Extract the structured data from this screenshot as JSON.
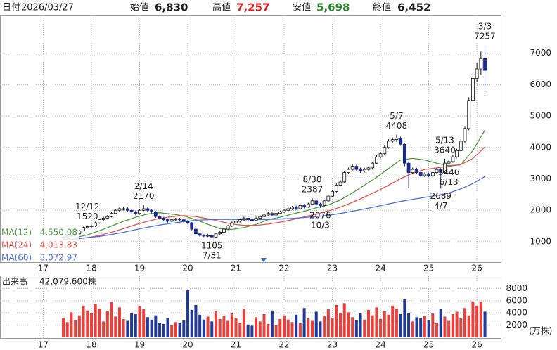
{
  "header": {
    "date_label": "日付",
    "date": "2026/03/27",
    "open_label": "始値",
    "open": "6,830",
    "high_label": "高値",
    "high": "7,257",
    "low_label": "安値",
    "low": "5,698",
    "close_label": "終値",
    "close": "6,452"
  },
  "chart_data": {
    "type": "candlestick",
    "ylim": [
      350,
      8200
    ],
    "yticks": [
      1000,
      2000,
      3000,
      4000,
      5000,
      6000,
      7000
    ],
    "grid": true,
    "xticks": [
      {
        "value": -5,
        "label": "17"
      },
      {
        "value": 7,
        "label": "18"
      },
      {
        "value": 19,
        "label": "19"
      },
      {
        "value": 31,
        "label": "20"
      },
      {
        "value": 43,
        "label": "21"
      },
      {
        "value": 55,
        "label": "22"
      },
      {
        "value": 67,
        "label": "23"
      },
      {
        "value": 79,
        "label": "24"
      },
      {
        "value": 91,
        "label": "25"
      },
      {
        "value": 103,
        "label": "26"
      }
    ],
    "up_color": "#ffffff",
    "down_color": "#1a2a8a",
    "open": [
      1120,
      1150,
      1180,
      1200,
      1250,
      1350,
      1450,
      1480,
      1500,
      1600,
      1700,
      1750,
      1800,
      1900,
      2000,
      2050,
      2050,
      2000,
      1950,
      1900,
      2000,
      2050,
      2000,
      1950,
      1800,
      1750,
      1700,
      1650,
      1700,
      1720,
      1700,
      1650,
      1600,
      1400,
      1250,
      1200,
      1180,
      1200,
      1150,
      1250,
      1300,
      1400,
      1500,
      1600,
      1650,
      1700,
      1750,
      1700,
      1680,
      1750,
      1800,
      1850,
      1900,
      1850,
      1900,
      1950,
      2000,
      2050,
      2100,
      2050,
      2150,
      2100,
      2200,
      2300,
      2200,
      2150,
      2300,
      2450,
      2600,
      2800,
      2900,
      3200,
      3300,
      3400,
      3300,
      3250,
      3300,
      3350,
      3500,
      3700,
      3800,
      4000,
      4200,
      4250,
      4300,
      4100,
      3500,
      3200,
      3300,
      3200,
      3100,
      3150,
      3100,
      3200,
      3300,
      3200,
      3500,
      3550,
      3700,
      3900,
      4200,
      4600,
      5500,
      6200,
      6500,
      6830
    ],
    "high": [
      1180,
      1210,
      1230,
      1280,
      1380,
      1480,
      1520,
      1540,
      1640,
      1740,
      1800,
      1850,
      1940,
      2050,
      2100,
      2110,
      2090,
      2040,
      1990,
      2040,
      2170,
      2100,
      2050,
      1980,
      1840,
      1790,
      1740,
      1740,
      1760,
      1760,
      1740,
      1690,
      1620,
      1430,
      1290,
      1240,
      1250,
      1230,
      1280,
      1340,
      1430,
      1540,
      1640,
      1690,
      1740,
      1790,
      1780,
      1740,
      1790,
      1840,
      1890,
      1940,
      1950,
      1940,
      1990,
      2040,
      2090,
      2140,
      2150,
      2190,
      2200,
      2240,
      2387,
      2330,
      2240,
      2340,
      2490,
      2640,
      2850,
      2960,
      3250,
      3360,
      3460,
      3450,
      3360,
      3350,
      3400,
      3550,
      3750,
      3860,
      4060,
      4260,
      4320,
      4408,
      4340,
      4150,
      3560,
      3360,
      3350,
      3260,
      3200,
      3200,
      3250,
      3350,
      3340,
      3640,
      3600,
      3750,
      3960,
      4260,
      4680,
      5600,
      6300,
      6700,
      7050,
      7257
    ],
    "low": [
      1100,
      1130,
      1160,
      1180,
      1230,
      1330,
      1420,
      1440,
      1470,
      1570,
      1660,
      1710,
      1770,
      1870,
      1960,
      1990,
      1950,
      1900,
      1840,
      1860,
      1970,
      1960,
      1900,
      1760,
      1700,
      1660,
      1610,
      1620,
      1670,
      1660,
      1610,
      1560,
      1360,
      1180,
      1160,
      1140,
      1150,
      1105,
      1130,
      1220,
      1270,
      1370,
      1470,
      1560,
      1610,
      1660,
      1660,
      1640,
      1650,
      1710,
      1770,
      1810,
      1810,
      1820,
      1870,
      1910,
      1960,
      2010,
      2010,
      2020,
      2060,
      2080,
      2170,
      2160,
      2076,
      2120,
      2270,
      2420,
      2570,
      2760,
      2870,
      3150,
      3250,
      3240,
      3190,
      3200,
      3250,
      3300,
      3460,
      3650,
      3760,
      3960,
      4150,
      4180,
      4050,
      3400,
      2700,
      3150,
      3150,
      3040,
      3060,
      3050,
      3060,
      3150,
      2689,
      3180,
      3446,
      3510,
      3670,
      3870,
      4150,
      4550,
      5450,
      6100,
      6300,
      5698
    ],
    "close": [
      1150,
      1180,
      1200,
      1250,
      1350,
      1450,
      1480,
      1500,
      1600,
      1700,
      1750,
      1800,
      1900,
      2000,
      2050,
      2050,
      2000,
      1950,
      1900,
      2000,
      2050,
      2000,
      1950,
      1800,
      1750,
      1700,
      1650,
      1700,
      1720,
      1700,
      1650,
      1600,
      1400,
      1250,
      1200,
      1180,
      1200,
      1150,
      1250,
      1300,
      1400,
      1500,
      1600,
      1650,
      1700,
      1750,
      1700,
      1680,
      1750,
      1800,
      1850,
      1900,
      1850,
      1900,
      1950,
      2000,
      2050,
      2100,
      2050,
      2150,
      2100,
      2200,
      2300,
      2200,
      2150,
      2300,
      2450,
      2600,
      2800,
      2900,
      3200,
      3300,
      3400,
      3300,
      3250,
      3300,
      3350,
      3500,
      3700,
      3800,
      4000,
      4200,
      4250,
      4300,
      4100,
      3500,
      3200,
      3300,
      3200,
      3100,
      3150,
      3100,
      3200,
      3300,
      3200,
      3500,
      3550,
      3700,
      3900,
      4200,
      4600,
      5500,
      6200,
      6500,
      6830,
      6452
    ],
    "ma": [
      {
        "name": "MA(12)",
        "color": "#4f9a3c",
        "value_label": "4,550.08",
        "x": [
          0,
          3,
          6,
          9,
          12,
          15,
          18,
          21,
          24,
          27,
          30,
          33,
          36,
          39,
          42,
          45,
          48,
          51,
          54,
          57,
          60,
          63,
          66,
          69,
          72,
          75,
          78,
          81,
          84,
          87,
          90,
          93,
          96,
          99,
          102,
          105
        ],
        "values": [
          1080,
          1130,
          1220,
          1350,
          1500,
          1650,
          1780,
          1880,
          1920,
          1880,
          1820,
          1700,
          1550,
          1420,
          1390,
          1450,
          1550,
          1700,
          1780,
          1880,
          1970,
          2080,
          2170,
          2330,
          2550,
          2800,
          3050,
          3330,
          3600,
          3650,
          3600,
          3500,
          3420,
          3450,
          3900,
          4550.08
        ]
      },
      {
        "name": "MA(24)",
        "color": "#e8554e",
        "value_label": "4,013.83",
        "x": [
          0,
          3,
          6,
          9,
          12,
          15,
          18,
          21,
          24,
          27,
          30,
          33,
          36,
          39,
          42,
          45,
          48,
          51,
          54,
          57,
          60,
          63,
          66,
          69,
          72,
          75,
          78,
          81,
          84,
          87,
          90,
          93,
          96,
          99,
          102,
          105
        ],
        "values": [
          1050,
          1080,
          1130,
          1200,
          1300,
          1420,
          1540,
          1650,
          1740,
          1800,
          1830,
          1800,
          1730,
          1650,
          1560,
          1520,
          1520,
          1560,
          1620,
          1700,
          1790,
          1880,
          1980,
          2100,
          2250,
          2420,
          2600,
          2800,
          3010,
          3180,
          3300,
          3350,
          3400,
          3450,
          3650,
          4013.83
        ]
      },
      {
        "name": "MA(60)",
        "color": "#4a6ee8",
        "value_label": "3,072.97",
        "x": [
          0,
          3,
          6,
          9,
          12,
          15,
          18,
          21,
          24,
          27,
          30,
          33,
          36,
          39,
          42,
          45,
          48,
          51,
          54,
          57,
          60,
          63,
          66,
          69,
          72,
          75,
          78,
          81,
          84,
          87,
          90,
          93,
          96,
          99,
          102,
          105
        ],
        "values": [
          1050,
          1100,
          1130,
          1170,
          1230,
          1300,
          1380,
          1460,
          1530,
          1590,
          1640,
          1680,
          1700,
          1710,
          1710,
          1700,
          1700,
          1710,
          1720,
          1740,
          1770,
          1800,
          1840,
          1900,
          1970,
          2040,
          2120,
          2200,
          2280,
          2350,
          2410,
          2470,
          2550,
          2680,
          2850,
          3072.97
        ]
      }
    ],
    "annotations": [
      {
        "date": "12/12",
        "value": 1520
      },
      {
        "date": "2/14",
        "value": 2170
      },
      {
        "date": "7/31",
        "value": 1105
      },
      {
        "date": "8/30",
        "value": 2387
      },
      {
        "date": "10/3",
        "value": 2076
      },
      {
        "date": "5/7",
        "value": 4408
      },
      {
        "date": "5/13",
        "value": 3640
      },
      {
        "date": "6/13",
        "value": 3446
      },
      {
        "date": "4/7",
        "value": 2689
      },
      {
        "date": "3/3",
        "value": 7257
      }
    ],
    "volume": {
      "title": "出来高",
      "total": "42,079,600株",
      "unit": "(万株)",
      "ylim": [
        0,
        10000
      ],
      "yticks": [
        2000,
        4000,
        6000,
        8000
      ],
      "up_color": "#e8403a",
      "down_color": "#1f3a9a",
      "values": [
        3200,
        2500,
        4100,
        2800,
        3600,
        5200,
        4400,
        3900,
        5500,
        4700,
        2600,
        4300,
        5800,
        3400,
        4900,
        3000,
        2700,
        4000,
        3800,
        5100,
        4600,
        3300,
        2900,
        3600,
        2400,
        2200,
        3100,
        2000,
        2500,
        2300,
        2800,
        7800,
        4500,
        5300,
        3700,
        2900,
        3400,
        2600,
        4300,
        3000,
        3500,
        2700,
        3900,
        3100,
        2400,
        4700,
        2100,
        1900,
        3300,
        2600,
        3800,
        2200,
        4400,
        2000,
        3000,
        3600,
        2900,
        2500,
        3700,
        2300,
        4800,
        3100,
        2700,
        4200,
        2600,
        3500,
        4600,
        3200,
        5300,
        3900,
        5600,
        4100,
        3300,
        2800,
        3900,
        2900,
        4500,
        3600,
        4900,
        3000,
        4300,
        3700,
        5200,
        4700,
        3800,
        6200,
        4000,
        2600,
        3300,
        3100,
        3500,
        2800,
        3900,
        2400,
        4600,
        3400,
        2700,
        3800,
        4200,
        3100,
        4800,
        3600,
        5900,
        5200,
        5800,
        4207.96
      ]
    }
  }
}
